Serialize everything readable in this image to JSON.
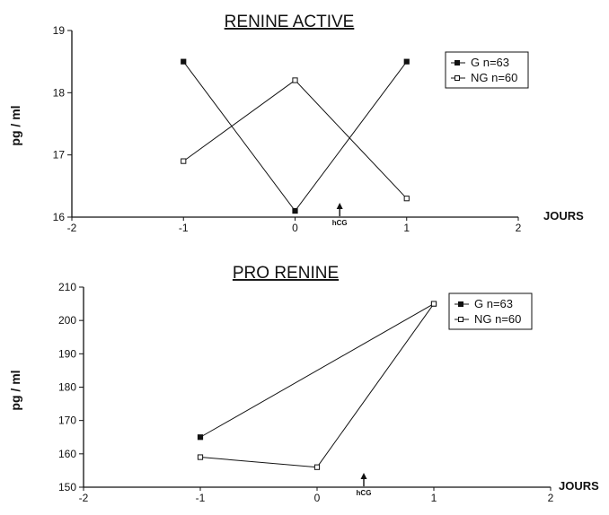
{
  "chart_data": [
    {
      "type": "line",
      "title": "RENINE ACTIVE",
      "xlabel": "JOURS",
      "ylabel": "pg / ml",
      "xlim": [
        -2,
        2
      ],
      "ylim": [
        16,
        19
      ],
      "xticks": [
        -2,
        -1,
        0,
        1,
        2
      ],
      "yticks": [
        16,
        17,
        18,
        19
      ],
      "x": [
        -1,
        0,
        1
      ],
      "series": [
        {
          "name": "G n=63",
          "marker": "filled-square",
          "values": [
            18.5,
            16.1,
            18.5
          ]
        },
        {
          "name": "NG n=60",
          "marker": "open-square",
          "values": [
            16.9,
            18.2,
            16.3
          ]
        }
      ],
      "annotation": {
        "text": "hCG",
        "x": 0.4
      },
      "legend_position": "top-right",
      "grid": false
    },
    {
      "type": "line",
      "title": "PRO RENINE",
      "xlabel": "JOURS",
      "ylabel": "pg / ml",
      "xlim": [
        -2,
        2
      ],
      "ylim": [
        150,
        210
      ],
      "xticks": [
        -2,
        -1,
        0,
        1,
        2
      ],
      "yticks": [
        150,
        160,
        170,
        180,
        190,
        200,
        210
      ],
      "x": [
        -1,
        0,
        1
      ],
      "series": [
        {
          "name": "G n=63",
          "marker": "filled-square",
          "x": [
            -1,
            1
          ],
          "values": [
            165,
            205
          ]
        },
        {
          "name": "NG n=60",
          "marker": "open-square",
          "x": [
            -1,
            0,
            1
          ],
          "values": [
            159,
            156,
            205
          ]
        }
      ],
      "annotation": {
        "text": "hCG",
        "x": 0.4
      },
      "legend_position": "top-right",
      "grid": false
    }
  ]
}
